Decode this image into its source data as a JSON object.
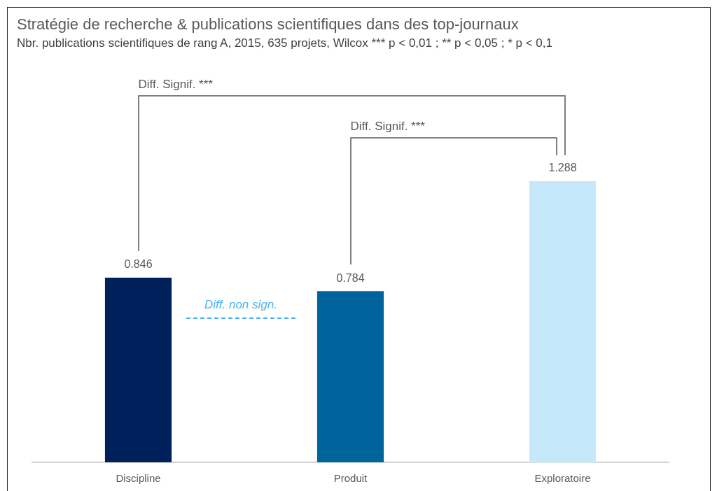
{
  "chart_data": {
    "type": "bar",
    "title": "Stratégie de recherche & publications scientifiques dans des top-journaux",
    "subtitle": "Nbr. publications scientifiques de rang A, 2015, 635 projets, Wilcox *** p < 0,01 ; ** p < 0,05 ; * p < 0,1",
    "categories": [
      "Discipline",
      "Produit",
      "Exploratoire"
    ],
    "values": [
      0.846,
      0.784,
      1.288
    ],
    "colors": [
      "#00205b",
      "#00649c",
      "#c5e8fb"
    ],
    "data_labels": true,
    "annotations": [
      "Diff. Signif. ***",
      "Diff. Signif. ***",
      "Diff. non sign."
    ]
  }
}
